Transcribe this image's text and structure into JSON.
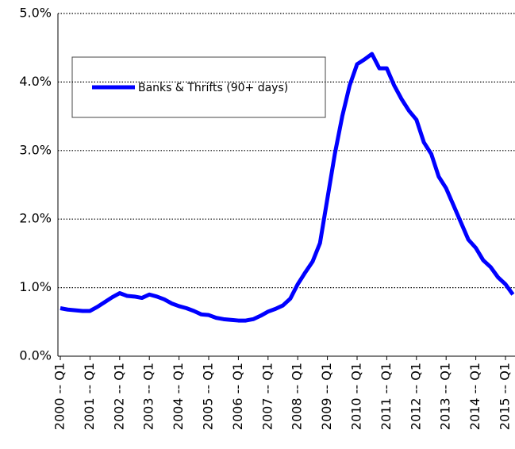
{
  "chart_data": {
    "type": "line",
    "categories": [
      "2000 -- Q1",
      null,
      null,
      null,
      "2001 -- Q1",
      null,
      null,
      null,
      "2002 -- Q1",
      null,
      null,
      null,
      "2003 -- Q1",
      null,
      null,
      null,
      "2004 -- Q1",
      null,
      null,
      null,
      "2005 -- Q1",
      null,
      null,
      null,
      "2006 -- Q1",
      null,
      null,
      null,
      "2007 -- Q1",
      null,
      null,
      null,
      "2008 -- Q1",
      null,
      null,
      null,
      "2009 -- Q1",
      null,
      null,
      null,
      "2010 -- Q1",
      null,
      null,
      null,
      "2011 -- Q1",
      null,
      null,
      null,
      "2012 -- Q1",
      null,
      null,
      null,
      "2013 -- Q1",
      null,
      null,
      null,
      "2014 -- Q1",
      null,
      null,
      null,
      "2015 -- Q1",
      null
    ],
    "series": [
      {
        "name": "Banks & Thrifts (90+ days)",
        "color": "#0000ff",
        "values": [
          0.7,
          0.68,
          0.67,
          0.66,
          0.66,
          0.72,
          0.79,
          0.86,
          0.92,
          0.88,
          0.87,
          0.85,
          0.9,
          0.87,
          0.83,
          0.77,
          0.73,
          0.7,
          0.66,
          0.61,
          0.6,
          0.56,
          0.54,
          0.53,
          0.52,
          0.52,
          0.54,
          0.59,
          0.65,
          0.69,
          0.74,
          0.84,
          1.05,
          1.22,
          1.38,
          1.65,
          2.3,
          2.95,
          3.5,
          3.95,
          4.26,
          4.33,
          4.41,
          4.2,
          4.2,
          3.95,
          3.75,
          3.58,
          3.45,
          3.12,
          2.95,
          2.62,
          2.45,
          2.2,
          1.95,
          1.7,
          1.58,
          1.4,
          1.3,
          1.15,
          1.05,
          0.9
        ]
      }
    ],
    "ylim": [
      0,
      5
    ],
    "yticks": [
      {
        "value": 0,
        "label": "0.0%"
      },
      {
        "value": 1,
        "label": "1.0%"
      },
      {
        "value": 2,
        "label": "2.0%"
      },
      {
        "value": 3,
        "label": "3.0%"
      },
      {
        "value": 4,
        "label": "4.0%"
      },
      {
        "value": 5,
        "label": "5.0%"
      }
    ],
    "grid": true
  }
}
